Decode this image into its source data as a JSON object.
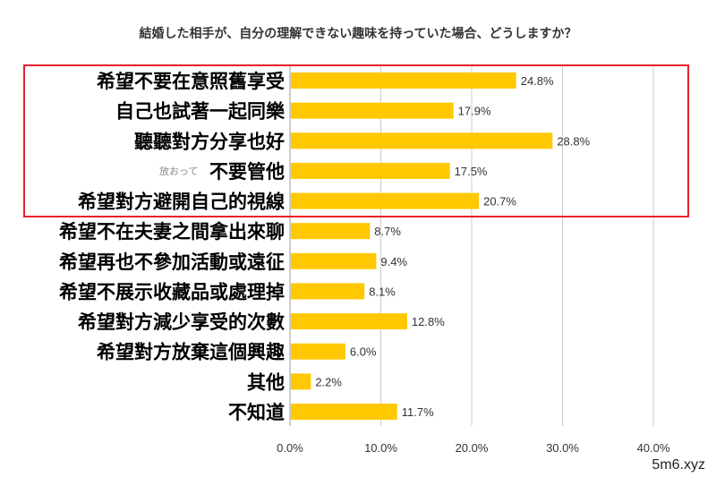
{
  "chart_data": {
    "type": "bar",
    "orientation": "horizontal",
    "title": "結婚した相手が、自分の理解できない趣味を持っていた場合、どうしますか？",
    "categories": [
      "希望不要在意照舊享受",
      "自己也試著一起同樂",
      "聽聽對方分享也好",
      "不要管他",
      "希望對方避開自己的視線",
      "希望不在夫妻之間拿出來聊",
      "希望再也不參加活動或遠征",
      "希望不展示收藏品或處理掉",
      "希望對方減少享受的次數",
      "希望對方放棄這個興趣",
      "其他",
      "不知道"
    ],
    "values": [
      24.8,
      17.9,
      28.8,
      17.5,
      20.7,
      8.7,
      9.4,
      8.1,
      12.8,
      6.0,
      2.2,
      11.7
    ],
    "value_labels": [
      "24.8%",
      "17.9%",
      "28.8%",
      "17.5%",
      "20.7%",
      "8.7%",
      "9.4%",
      "8.1%",
      "12.8%",
      "6.0%",
      "2.2%",
      "11.7%"
    ],
    "xlim": [
      0,
      40
    ],
    "xticks": [
      "0.0%",
      "10.0%",
      "20.0%",
      "30.0%",
      "40.0%"
    ],
    "grid": true,
    "bar_color": "#FFC800",
    "highlight_box": {
      "categories_highlighted": [
        0,
        1,
        2,
        3,
        4
      ],
      "color": "#E8212A"
    }
  },
  "overlay_text": "放おって",
  "watermark": "5m6.xyz"
}
